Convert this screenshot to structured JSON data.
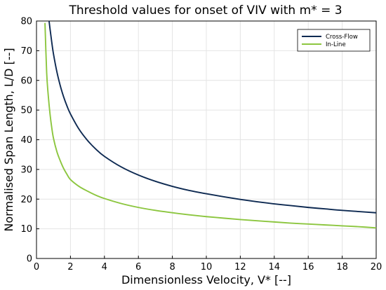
{
  "chart_data": {
    "type": "line",
    "title": "Threshold values for onset of VIV with m* = 3",
    "xlabel": "Dimensionless Velocity, V* [--]",
    "ylabel": "Normalised Span Length, L/D [--]",
    "xlim": [
      0,
      20
    ],
    "ylim": [
      0,
      80
    ],
    "xticks": [
      "0",
      "2",
      "4",
      "6",
      "8",
      "10",
      "12",
      "14",
      "16",
      "18",
      "20"
    ],
    "yticks": [
      "0",
      "10",
      "20",
      "30",
      "40",
      "50",
      "60",
      "70",
      "80"
    ],
    "grid": true,
    "legend_position": "top-right",
    "x": [
      0.5,
      0.6,
      0.7,
      0.8,
      0.9,
      1.0,
      1.2,
      1.4,
      1.6,
      1.8,
      2.0,
      2.5,
      3.0,
      3.5,
      4.0,
      5.0,
      6.0,
      7.0,
      8.0,
      9.0,
      10.0,
      11.0,
      12.0,
      13.0,
      14.0,
      15.0,
      16.0,
      17.0,
      18.0,
      19.0,
      20.0
    ],
    "series": [
      {
        "name": "Cross-Flow",
        "color": "#0e2a52",
        "values": [
          null,
          null,
          82.0,
          77.2,
          72.8,
          68.9,
          62.9,
          58.2,
          54.4,
          51.3,
          48.7,
          43.6,
          39.8,
          36.8,
          34.4,
          30.8,
          28.1,
          26.0,
          24.3,
          22.9,
          21.8,
          20.8,
          19.9,
          19.1,
          18.4,
          17.8,
          17.2,
          16.7,
          16.2,
          15.8,
          15.4
        ]
      },
      {
        "name": "In-Line",
        "color": "#8cc63f",
        "values": [
          79.2,
          62.5,
          54.4,
          48.5,
          44.0,
          40.5,
          36.0,
          32.9,
          30.3,
          28.3,
          26.6,
          24.3,
          22.7,
          21.3,
          20.2,
          18.5,
          17.2,
          16.2,
          15.4,
          14.7,
          14.1,
          13.6,
          13.1,
          12.7,
          12.3,
          11.9,
          11.6,
          11.3,
          11.0,
          10.7,
          10.3
        ]
      }
    ]
  }
}
